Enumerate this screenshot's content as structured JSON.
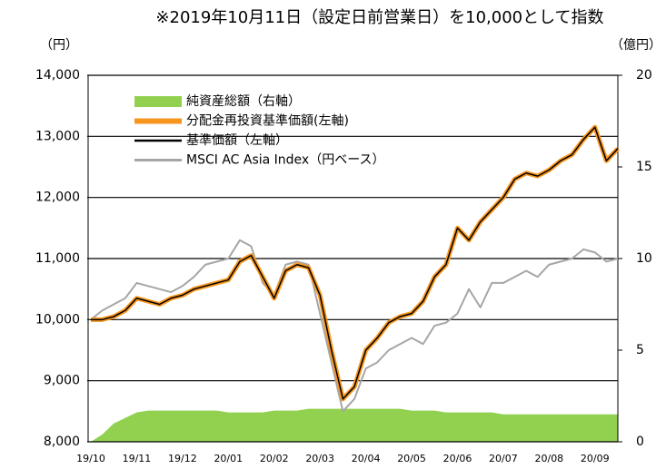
{
  "chart_data": {
    "type": "line",
    "title": "※2019年10月11日（設定日前営業日）を10,000として指数",
    "y_label": "（円）",
    "y2_label": "（億円）",
    "categories": [
      "19/10",
      null,
      null,
      null,
      "19/11",
      null,
      null,
      null,
      "19/12",
      null,
      null,
      null,
      "20/01",
      null,
      null,
      null,
      "20/02",
      null,
      null,
      null,
      "20/03",
      null,
      null,
      null,
      "20/04",
      null,
      null,
      null,
      "20/05",
      null,
      null,
      null,
      "20/06",
      null,
      null,
      null,
      "20/07",
      null,
      null,
      null,
      "20/08",
      null,
      null,
      null,
      "20/09",
      null,
      null
    ],
    "ylim": [
      8000,
      14000
    ],
    "yticks": [
      {
        "value": 8000,
        "label": "8,000"
      },
      {
        "value": 9000,
        "label": "9,000"
      },
      {
        "value": 10000,
        "label": "10,000"
      },
      {
        "value": 11000,
        "label": "11,000"
      },
      {
        "value": 12000,
        "label": "12,000"
      },
      {
        "value": 13000,
        "label": "13,000"
      },
      {
        "value": 14000,
        "label": "14,000"
      }
    ],
    "y2lim": [
      0,
      20
    ],
    "y2ticks": [
      0,
      5,
      10,
      15,
      20
    ],
    "grid": true,
    "legend": "upper left",
    "series": [
      {
        "name": "純資産総額（右軸）",
        "type": "area",
        "axis": "y2",
        "color": "#92d050",
        "values": [
          0,
          0.4,
          1.0,
          1.3,
          1.6,
          1.7,
          1.7,
          1.7,
          1.7,
          1.7,
          1.7,
          1.7,
          1.6,
          1.6,
          1.6,
          1.6,
          1.7,
          1.7,
          1.7,
          1.8,
          1.8,
          1.8,
          1.8,
          1.8,
          1.8,
          1.8,
          1.8,
          1.8,
          1.7,
          1.7,
          1.7,
          1.6,
          1.6,
          1.6,
          1.6,
          1.6,
          1.5,
          1.5,
          1.5,
          1.5,
          1.5,
          1.5,
          1.5,
          1.5,
          1.5,
          1.5,
          1.5
        ]
      },
      {
        "name": "分配金再投資基準価額(左軸)",
        "type": "line",
        "color": "#f7961e",
        "width": 5,
        "values": [
          10000,
          10000,
          10050,
          10150,
          10350,
          10300,
          10250,
          10350,
          10400,
          10500,
          10550,
          10600,
          10650,
          10950,
          11050,
          10700,
          10350,
          10800,
          10900,
          10850,
          10400,
          9500,
          8700,
          8900,
          9500,
          9700,
          9950,
          10050,
          10100,
          10300,
          10700,
          10900,
          11500,
          11300,
          11600,
          11800,
          12000,
          12300,
          12400,
          12350,
          12450,
          12600,
          12700,
          12950,
          13150,
          12600,
          12800
        ]
      },
      {
        "name": "基準価額（左軸）",
        "type": "line",
        "color": "#000000",
        "width": 1.5,
        "values": [
          10000,
          10000,
          10050,
          10150,
          10350,
          10300,
          10250,
          10350,
          10400,
          10500,
          10550,
          10600,
          10650,
          10950,
          11050,
          10700,
          10350,
          10800,
          10900,
          10850,
          10400,
          9500,
          8700,
          8900,
          9500,
          9700,
          9950,
          10050,
          10100,
          10300,
          10700,
          10900,
          11500,
          11300,
          11600,
          11800,
          12000,
          12300,
          12400,
          12350,
          12450,
          12600,
          12700,
          12950,
          13150,
          12600,
          12800
        ]
      },
      {
        "name": "MSCI AC Asia Index（円ベース）",
        "type": "line",
        "color": "#a6a6a6",
        "width": 2,
        "values": [
          10000,
          10150,
          10250,
          10350,
          10600,
          10550,
          10500,
          10450,
          10550,
          10700,
          10900,
          10950,
          11000,
          11300,
          11200,
          10600,
          10400,
          10900,
          10950,
          10900,
          10100,
          9300,
          8500,
          8700,
          9200,
          9300,
          9500,
          9600,
          9700,
          9600,
          9900,
          9950,
          10100,
          10500,
          10200,
          10600,
          10600,
          10700,
          10800,
          10700,
          10900,
          10950,
          11000,
          11150,
          11100,
          10950,
          11000
        ]
      }
    ]
  }
}
